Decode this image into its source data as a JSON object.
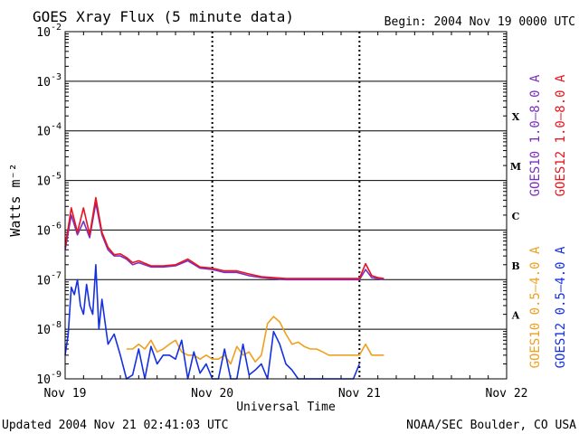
{
  "chart_data": {
    "type": "line",
    "title": "GOES Xray Flux (5 minute data)",
    "begin_label": "Begin:  2004 Nov 19 0000 UTC",
    "xlabel": "Universal Time",
    "ylabel": "Watts m⁻²",
    "y_scale": "log",
    "ylim": [
      1e-09,
      0.01
    ],
    "y_ticks": [
      {
        "base": "10",
        "exp": "-9"
      },
      {
        "base": "10",
        "exp": "-8"
      },
      {
        "base": "10",
        "exp": "-7"
      },
      {
        "base": "10",
        "exp": "-6"
      },
      {
        "base": "10",
        "exp": "-5"
      },
      {
        "base": "10",
        "exp": "-4"
      },
      {
        "base": "10",
        "exp": "-3"
      },
      {
        "base": "10",
        "exp": "-2"
      }
    ],
    "xlim": [
      "2004-11-19 00:00",
      "2004-11-22 00:00"
    ],
    "x_ticks": [
      "Nov 19",
      "Nov 20",
      "Nov 21",
      "Nov 22"
    ],
    "flare_classes": [
      {
        "label": "X",
        "value": 0.0002
      },
      {
        "label": "M",
        "value": 2e-05
      },
      {
        "label": "C",
        "value": 2e-06
      },
      {
        "label": "B",
        "value": 2e-07
      },
      {
        "label": "A",
        "value": 2e-08
      }
    ],
    "grid": true,
    "legend_position": "right-vertical",
    "series": [
      {
        "name": "GOES10 1.0–8.0 A",
        "color": "#7b2fbe",
        "x_hours": [
          0,
          1,
          2,
          3,
          4,
          5,
          6,
          7,
          8,
          9,
          10,
          11,
          12,
          14,
          16,
          18,
          20,
          22,
          24,
          26,
          28,
          30,
          32,
          34,
          36,
          38,
          40,
          42,
          44,
          46,
          48,
          49,
          50,
          51,
          52
        ],
        "values": [
          4e-07,
          2e-06,
          8e-07,
          1.5e-06,
          7e-07,
          3.5e-06,
          8e-07,
          4e-07,
          3e-07,
          3e-07,
          2.6e-07,
          2e-07,
          2.2e-07,
          1.8e-07,
          1.8e-07,
          1.9e-07,
          2.4e-07,
          1.7e-07,
          1.6e-07,
          1.4e-07,
          1.4e-07,
          1.2e-07,
          1.1e-07,
          1.05e-07,
          1e-07,
          1e-07,
          1e-07,
          1e-07,
          1e-07,
          1e-07,
          1e-07,
          1.6e-07,
          1.1e-07,
          1.05e-07,
          1e-07
        ]
      },
      {
        "name": "GOES12 1.0–8.0 A",
        "color": "#e8141e",
        "x_hours": [
          0,
          1,
          2,
          3,
          4,
          5,
          6,
          7,
          8,
          9,
          10,
          11,
          12,
          14,
          16,
          18,
          20,
          22,
          24,
          26,
          28,
          30,
          32,
          34,
          36,
          38,
          40,
          42,
          44,
          46,
          48,
          49,
          50,
          51,
          52
        ],
        "values": [
          4.5e-07,
          2.8e-06,
          9e-07,
          2.8e-06,
          8e-07,
          4.5e-06,
          9e-07,
          4.5e-07,
          3.2e-07,
          3.3e-07,
          2.8e-07,
          2.2e-07,
          2.4e-07,
          1.9e-07,
          1.9e-07,
          2e-07,
          2.6e-07,
          1.8e-07,
          1.7e-07,
          1.5e-07,
          1.5e-07,
          1.3e-07,
          1.15e-07,
          1.1e-07,
          1.05e-07,
          1.05e-07,
          1.05e-07,
          1.05e-07,
          1.05e-07,
          1.05e-07,
          1.05e-07,
          2.1e-07,
          1.2e-07,
          1.1e-07,
          1.05e-07
        ]
      },
      {
        "name": "GOES10 0.5–4.0 A",
        "color": "#f0a020",
        "x_hours": [
          10,
          11,
          12,
          13,
          14,
          15,
          16,
          17,
          18,
          19,
          20,
          21,
          22,
          23,
          24,
          25,
          26,
          27,
          28,
          29,
          30,
          31,
          32,
          33,
          34,
          35,
          36,
          37,
          38,
          39,
          40,
          41,
          42,
          43,
          44,
          45,
          46,
          47,
          48,
          49,
          50,
          51,
          52
        ],
        "values": [
          4e-09,
          4e-09,
          5e-09,
          4e-09,
          6e-09,
          3.5e-09,
          4e-09,
          5e-09,
          6e-09,
          3.5e-09,
          3e-09,
          3e-09,
          2.5e-09,
          3e-09,
          2.5e-09,
          2.5e-09,
          3e-09,
          2e-09,
          4.5e-09,
          3e-09,
          3.5e-09,
          2.2e-09,
          3e-09,
          1.3e-08,
          1.8e-08,
          1.4e-08,
          8e-09,
          5e-09,
          5.5e-09,
          4.5e-09,
          4e-09,
          4e-09,
          3.5e-09,
          3e-09,
          3e-09,
          3e-09,
          3e-09,
          3e-09,
          3e-09,
          5e-09,
          3e-09,
          3e-09,
          3e-09
        ]
      },
      {
        "name": "GOES12 0.5–4.0 A",
        "color": "#1530e0",
        "x_hours": [
          0,
          0.5,
          1,
          1.5,
          2,
          2.5,
          3,
          3.5,
          4,
          4.5,
          5,
          5.5,
          6,
          7,
          8,
          9,
          10,
          11,
          12,
          13,
          14,
          15,
          16,
          17,
          18,
          19,
          20,
          21,
          22,
          23,
          24,
          25,
          26,
          27,
          28,
          29,
          30,
          31,
          32,
          33,
          34,
          35,
          36,
          37,
          38,
          39,
          40,
          41,
          42,
          43,
          44,
          45,
          46,
          47,
          48
        ],
        "values": [
          3e-09,
          8e-09,
          7e-08,
          5e-08,
          1e-07,
          3e-08,
          2e-08,
          8e-08,
          3e-08,
          2e-08,
          2e-07,
          1e-08,
          4e-08,
          5e-09,
          8e-09,
          3e-09,
          1e-09,
          1.2e-09,
          4e-09,
          1e-09,
          4.5e-09,
          2e-09,
          3e-09,
          3e-09,
          2.5e-09,
          6e-09,
          1e-09,
          3.5e-09,
          1.3e-09,
          2e-09,
          1e-09,
          1e-09,
          4e-09,
          1e-09,
          1e-09,
          5e-09,
          1.2e-09,
          1.5e-09,
          2e-09,
          1e-09,
          9e-09,
          5e-09,
          2e-09,
          1.5e-09,
          1e-09,
          1e-09,
          1e-09,
          1e-09,
          1e-09,
          1e-09,
          1e-09,
          1e-09,
          1e-09,
          1e-09,
          2e-09
        ]
      }
    ]
  },
  "footer": {
    "updated": "Updated 2004 Nov 21 02:41:03 UTC",
    "credit": "NOAA/SEC Boulder, CO USA"
  }
}
